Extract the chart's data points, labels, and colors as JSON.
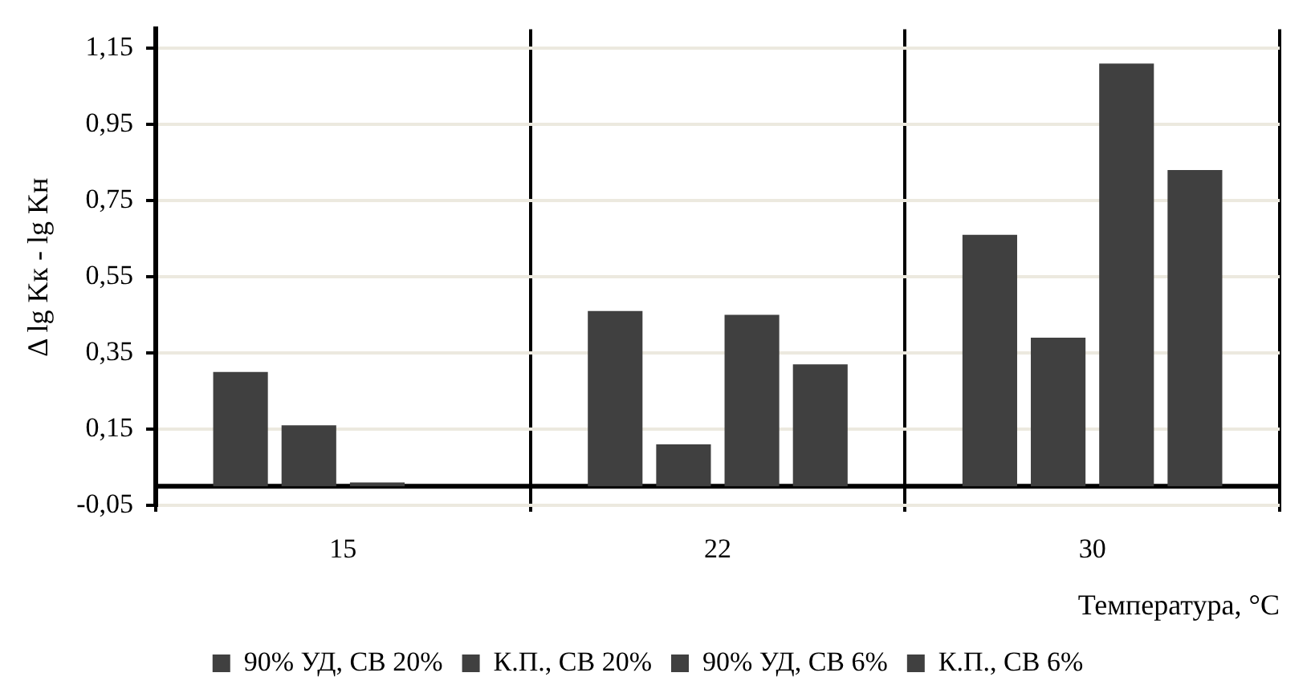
{
  "chart_data": {
    "type": "bar",
    "xlabel": "Температура, °C",
    "ylabel": "Δ lg Kк - lg Kн",
    "categories": [
      "15",
      "22",
      "30"
    ],
    "series": [
      {
        "name": "90% УД, СВ 20%",
        "color": "#404040",
        "values": [
          0.3,
          0.46,
          0.66
        ]
      },
      {
        "name": "К.П., СВ 20%",
        "color": "#404040",
        "values": [
          0.16,
          0.11,
          0.39
        ]
      },
      {
        "name": "90% УД, СВ 6%",
        "color": "#404040",
        "values": [
          0.01,
          0.45,
          1.11
        ]
      },
      {
        "name": "К.П., СВ 6%",
        "color": "#404040",
        "values": [
          0,
          0.32,
          0.83
        ]
      }
    ],
    "ylim": [
      -0.05,
      1.2
    ],
    "yticks": [
      {
        "value": -0.05,
        "label": "-0,05"
      },
      {
        "value": 0.15,
        "label": "0,15"
      },
      {
        "value": 0.35,
        "label": "0,35"
      },
      {
        "value": 0.55,
        "label": "0,55"
      },
      {
        "value": 0.75,
        "label": "0,75"
      },
      {
        "value": 0.95,
        "label": "0,95"
      },
      {
        "value": 1.15,
        "label": "1,15"
      }
    ],
    "grid": true,
    "legend": "bottom"
  }
}
